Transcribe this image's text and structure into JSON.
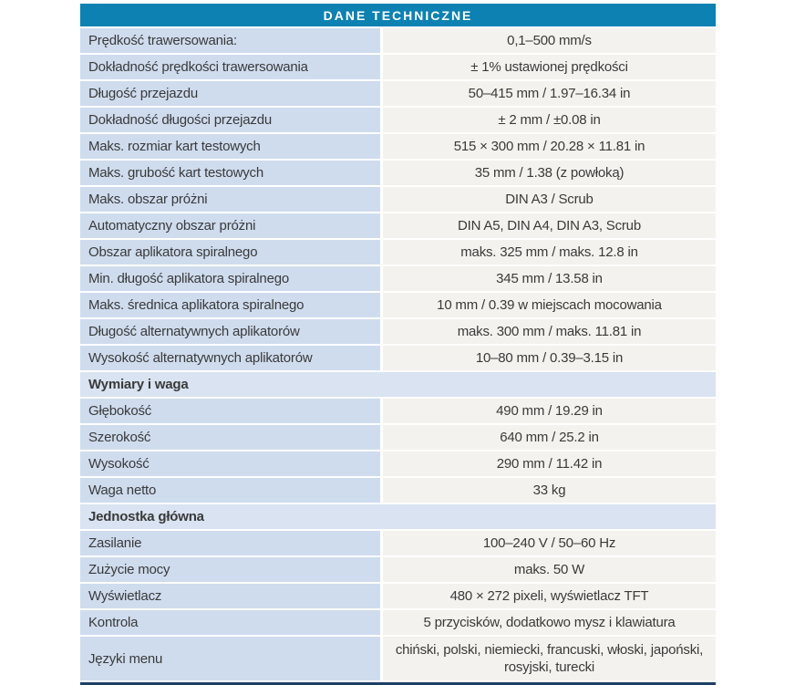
{
  "header": {
    "title": "DANE TECHNICZNE"
  },
  "colors": {
    "header_bg": "#0d81b2",
    "header_text": "#ffffff",
    "label_cell_bg": "#cfdcee",
    "section_row_bg": "#d9e3f1",
    "value_cell_bg": "#f4f2ee",
    "bottom_rule": "#1d4066",
    "text": "#3a3a3a"
  },
  "rows": [
    {
      "type": "data",
      "label": "Prędkość trawersowania:",
      "value": "0,1–500 mm/s"
    },
    {
      "type": "data",
      "label": "Dokładność prędkości trawersowania",
      "value": "± 1% ustawionej prędkości"
    },
    {
      "type": "data",
      "label": "Długość przejazdu",
      "value": "50–415 mm / 1.97–16.34 in"
    },
    {
      "type": "data",
      "label": "Dokładność długości przejazdu",
      "value": "± 2 mm / ±0.08 in"
    },
    {
      "type": "data",
      "label": "Maks. rozmiar kart testowych",
      "value": "515 × 300 mm / 20.28 × 11.81 in"
    },
    {
      "type": "data",
      "label": "Maks. grubość kart testowych",
      "value": "35 mm / 1.38 (z powłoką)"
    },
    {
      "type": "data",
      "label": "Maks. obszar próżni",
      "value": "DIN A3 / Scrub"
    },
    {
      "type": "data",
      "label": "Automatyczny obszar próżni",
      "value": "DIN A5, DIN A4, DIN A3, Scrub"
    },
    {
      "type": "data",
      "label": "Obszar aplikatora spiralnego",
      "value": "maks. 325 mm / maks. 12.8 in"
    },
    {
      "type": "data",
      "label": "Min. długość aplikatora spiralnego",
      "value": "345 mm / 13.58 in"
    },
    {
      "type": "data",
      "label": "Maks. średnica aplikatora spiralnego",
      "value": "10 mm / 0.39 w miejscach mocowania"
    },
    {
      "type": "data",
      "label": "Długość alternatywnych aplikatorów",
      "value": "maks. 300 mm / maks. 11.81 in"
    },
    {
      "type": "data",
      "label": "Wysokość alternatywnych aplikatorów",
      "value": "10–80 mm / 0.39–3.15 in"
    },
    {
      "type": "section",
      "label": "Wymiary i waga"
    },
    {
      "type": "data",
      "label": "Głębokość",
      "value": "490 mm / 19.29 in"
    },
    {
      "type": "data",
      "label": "Szerokość",
      "value": "640 mm / 25.2 in"
    },
    {
      "type": "data",
      "label": "Wysokość",
      "value": "290 mm / 11.42 in"
    },
    {
      "type": "data",
      "label": "Waga netto",
      "value": "33 kg"
    },
    {
      "type": "section",
      "label": "Jednostka główna"
    },
    {
      "type": "data",
      "label": "Zasilanie",
      "value": "100–240 V / 50–60 Hz"
    },
    {
      "type": "data",
      "label": "Zużycie mocy",
      "value": "maks. 50 W"
    },
    {
      "type": "data",
      "label": "Wyświetlacz",
      "value": "480 × 272 pixeli, wyświetlacz TFT"
    },
    {
      "type": "data",
      "label": "Kontrola",
      "value": "5 przycisków, dodatkowo mysz i klawiatura"
    },
    {
      "type": "data",
      "label": "Języki menu",
      "value": "chiński, polski, niemiecki, francuski, włoski, japoński, rosyjski, turecki"
    }
  ]
}
